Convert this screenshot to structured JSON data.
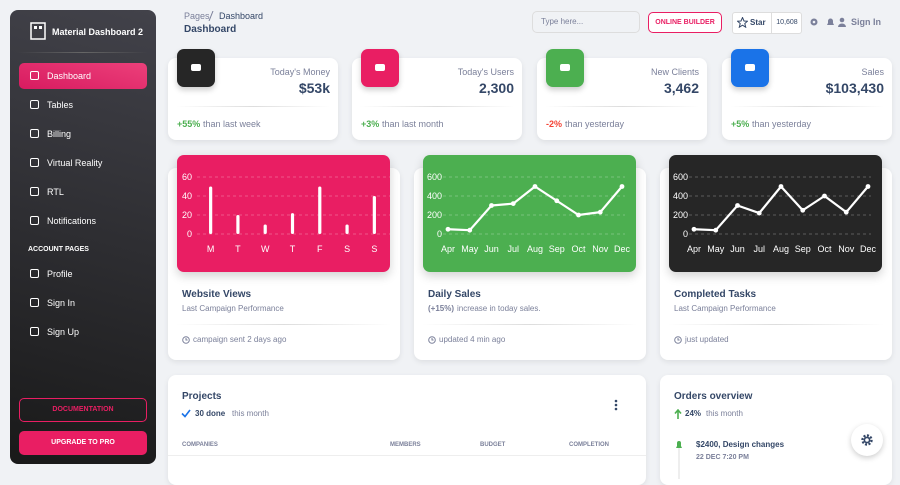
{
  "sidebar": {
    "brand": "Material Dashboard 2",
    "items": [
      "Dashboard",
      "Tables",
      "Billing",
      "Virtual Reality",
      "RTL",
      "Notifications"
    ],
    "section": "ACCOUNT PAGES",
    "account_items": [
      "Profile",
      "Sign In",
      "Sign Up"
    ],
    "buttons": [
      "DOCUMENTATION",
      "UPGRADE TO PRO"
    ]
  },
  "navbar": {
    "breadcrumb": [
      "Pages",
      "Dashboard"
    ],
    "title": "Dashboard",
    "search_placeholder": "Type here...",
    "builder_button": "ONLINE BUILDER",
    "star_label": "Star",
    "star_count": "10,608",
    "sign_in": "Sign In"
  },
  "stats": [
    {
      "label": "Today's Money",
      "value": "$53k",
      "change": "+55%",
      "note": "than last week"
    },
    {
      "label": "Today's Users",
      "value": "2,300",
      "change": "+3%",
      "note": "than last month"
    },
    {
      "label": "New Clients",
      "value": "3,462",
      "change": "-2%",
      "note": "than yesterday"
    },
    {
      "label": "Sales",
      "value": "$103,430",
      "change": "+5%",
      "note": "than yesterday"
    }
  ],
  "chart_cards": [
    {
      "title": "Website Views",
      "subtitle": "Last Campaign Performance",
      "footer": "campaign sent 2 days ago"
    },
    {
      "title": "Daily Sales",
      "highlight": "(+15%)",
      "subtitle": "increase in today sales.",
      "footer": "updated 4 min ago"
    },
    {
      "title": "Completed Tasks",
      "subtitle": "Last Campaign Performance",
      "footer": "just updated"
    }
  ],
  "chart_data": [
    {
      "type": "bar",
      "background": "#e91e63",
      "color": "#ffffff",
      "categories": [
        "M",
        "T",
        "W",
        "T",
        "F",
        "S",
        "S"
      ],
      "values": [
        50,
        20,
        10,
        22,
        50,
        10,
        40
      ],
      "ylim": [
        0,
        60
      ],
      "yticks": [
        0,
        20,
        40,
        60
      ],
      "grid": true
    },
    {
      "type": "line",
      "background": "#4caf50",
      "color": "#ffffff",
      "categories": [
        "Apr",
        "May",
        "Jun",
        "Jul",
        "Aug",
        "Sep",
        "Oct",
        "Nov",
        "Dec"
      ],
      "values": [
        50,
        40,
        300,
        320,
        500,
        350,
        200,
        230,
        500
      ],
      "ylim": [
        0,
        600
      ],
      "yticks": [
        0,
        200,
        400,
        600
      ],
      "grid": true
    },
    {
      "type": "line",
      "background": "#262626",
      "color": "#ffffff",
      "categories": [
        "Apr",
        "May",
        "Jun",
        "Jul",
        "Aug",
        "Sep",
        "Oct",
        "Nov",
        "Dec"
      ],
      "values": [
        50,
        40,
        300,
        220,
        500,
        250,
        400,
        230,
        500
      ],
      "ylim": [
        0,
        600
      ],
      "yticks": [
        0,
        200,
        400,
        600
      ],
      "grid": true
    }
  ],
  "projects": {
    "title": "Projects",
    "done": "30 done",
    "done_note": "this month",
    "columns": [
      "COMPANIES",
      "MEMBERS",
      "BUDGET",
      "COMPLETION"
    ]
  },
  "orders": {
    "title": "Orders overview",
    "change": "24%",
    "change_note": "this month",
    "events": [
      {
        "title": "$2400, Design changes",
        "time": "22 DEC 7:20 PM"
      }
    ]
  }
}
